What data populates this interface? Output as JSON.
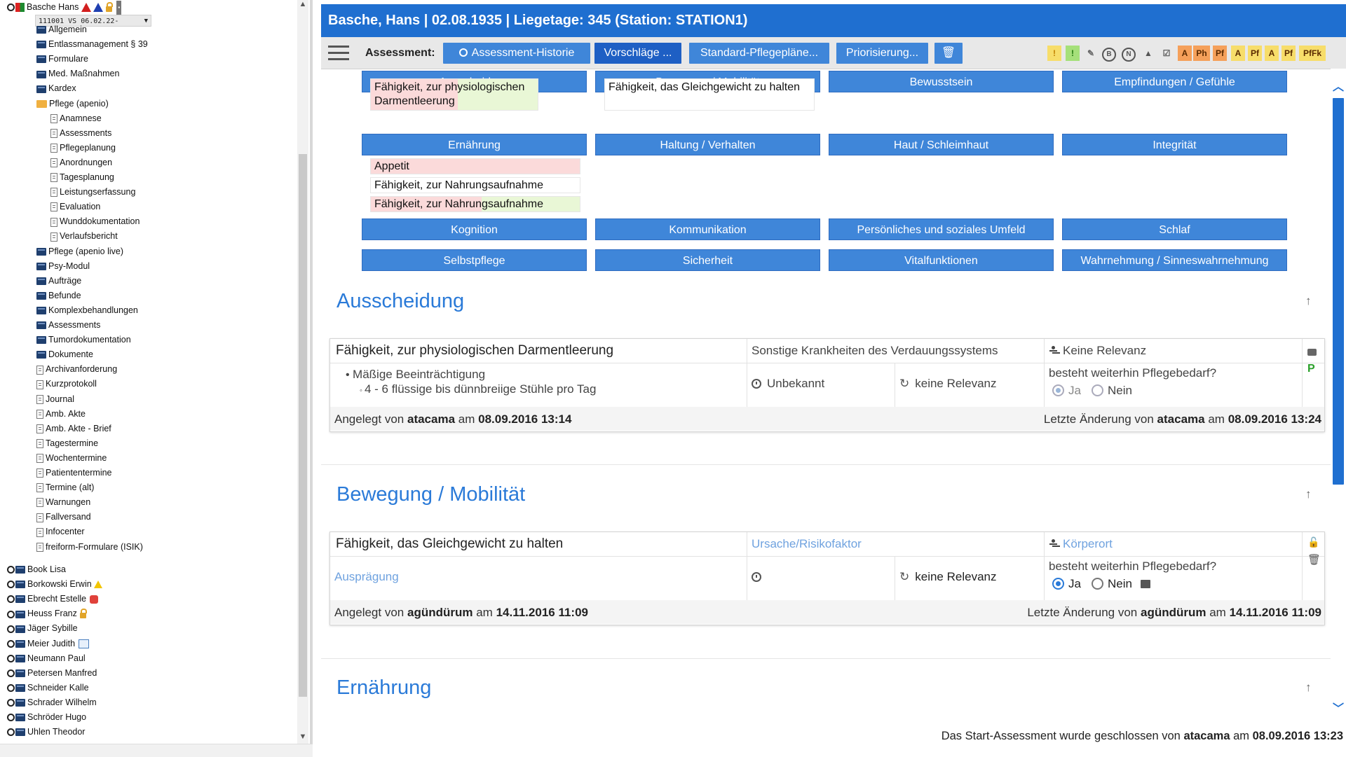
{
  "tree": {
    "root_patient": "Basche Hans",
    "case_select": "111001 VS 06.02.22-",
    "items": [
      {
        "label": "Allgemein",
        "icon": "book"
      },
      {
        "label": "Entlassmanagement § 39",
        "icon": "book"
      },
      {
        "label": "Formulare",
        "icon": "book"
      },
      {
        "label": "Med. Maßnahmen",
        "icon": "book"
      },
      {
        "label": "Kardex",
        "icon": "book"
      },
      {
        "label": "Pflege (apenio)",
        "icon": "folder-open"
      },
      {
        "label": "Anamnese",
        "icon": "page",
        "sub": true
      },
      {
        "label": "Assessments",
        "icon": "page",
        "sub": true
      },
      {
        "label": "Pflegeplanung",
        "icon": "page",
        "sub": true
      },
      {
        "label": "Anordnungen",
        "icon": "page",
        "sub": true
      },
      {
        "label": "Tagesplanung",
        "icon": "page",
        "sub": true
      },
      {
        "label": "Leistungserfassung",
        "icon": "page",
        "sub": true
      },
      {
        "label": "Evaluation",
        "icon": "page",
        "sub": true
      },
      {
        "label": "Wunddokumentation",
        "icon": "page",
        "sub": true
      },
      {
        "label": "Verlaufsbericht",
        "icon": "page",
        "sub": true
      },
      {
        "label": "Pflege (apenio live)",
        "icon": "book"
      },
      {
        "label": "Psy-Modul",
        "icon": "book"
      },
      {
        "label": "Aufträge",
        "icon": "book"
      },
      {
        "label": "Befunde",
        "icon": "book"
      },
      {
        "label": "Komplexbehandlungen",
        "icon": "book"
      },
      {
        "label": "Assessments",
        "icon": "book"
      },
      {
        "label": "Tumordokumentation",
        "icon": "book"
      },
      {
        "label": "Dokumente",
        "icon": "book"
      },
      {
        "label": "Archivanforderung",
        "icon": "page"
      },
      {
        "label": "Kurzprotokoll",
        "icon": "page"
      },
      {
        "label": "Journal",
        "icon": "page"
      },
      {
        "label": "Amb. Akte",
        "icon": "page"
      },
      {
        "label": "Amb. Akte - Brief",
        "icon": "page"
      },
      {
        "label": "Tagestermine",
        "icon": "page"
      },
      {
        "label": "Wochentermine",
        "icon": "page"
      },
      {
        "label": "Patiententermine",
        "icon": "page"
      },
      {
        "label": "Termine (alt)",
        "icon": "page"
      },
      {
        "label": "Warnungen",
        "icon": "page"
      },
      {
        "label": "Fallversand",
        "icon": "page"
      },
      {
        "label": "Infocenter",
        "icon": "page"
      },
      {
        "label": "freiform-Formulare (ISIK)",
        "icon": "page"
      }
    ],
    "patients": [
      {
        "name": "Book Lisa",
        "flag": ""
      },
      {
        "name": "Borkowski Erwin",
        "flag": "warning"
      },
      {
        "name": "Ebrecht Estelle",
        "flag": "hand"
      },
      {
        "name": "Heuss Franz",
        "flag": "lock"
      },
      {
        "name": "Jäger Sybille",
        "flag": ""
      },
      {
        "name": "Meier Judith",
        "flag": "calendar"
      },
      {
        "name": "Neumann Paul",
        "flag": ""
      },
      {
        "name": "Petersen Manfred",
        "flag": ""
      },
      {
        "name": "Schneider Kalle",
        "flag": ""
      },
      {
        "name": "Schrader Wilhelm",
        "flag": ""
      },
      {
        "name": "Schröder Hugo",
        "flag": ""
      },
      {
        "name": "Uhlen Theodor",
        "flag": ""
      }
    ]
  },
  "header": {
    "title": "Basche, Hans | 02.08.1935 | Liegetage: 345 (Station: STATION1)"
  },
  "toolbar": {
    "assessment_label": "Assessment:",
    "history_btn": "Assessment-Historie",
    "suggestions_btn": "Vorschläge ...",
    "standard_btn": "Standard-Pflegepläne...",
    "priority_btn": "Priorisierung...",
    "right_badges": [
      "Ph",
      "Pf",
      "A",
      "Pf",
      "A",
      "Pf",
      "PfFk"
    ],
    "letter_icons": [
      "B",
      "N"
    ]
  },
  "categories": [
    "Ausscheidung",
    "Bewegung / Mobilität",
    "Bewusstsein",
    "Empfindungen / Gefühle",
    "Ernährung",
    "Haltung / Verhalten",
    "Haut / Schleimhaut",
    "Integrität",
    "Kognition",
    "Kommunikation",
    "Persönliches und soziales Umfeld",
    "Schlaf",
    "Selbstpflege",
    "Sicherheit",
    "Vitalfunktionen",
    "Wahrnehmung / Sinneswahrnehmung"
  ],
  "chips": {
    "ausscheidung": "Fähigkeit, zur physiologischen Darmentleerung",
    "bewegung": "Fähigkeit, das Gleichgewicht zu halten",
    "ernaehrung": [
      "Appetit",
      "Fähigkeit, zur Nahrungsaufnahme",
      "Fähigkeit, zur Nahrungsaufnahme"
    ]
  },
  "sections": {
    "s1": {
      "title": "Ausscheidung",
      "card_title": "Fähigkeit, zur physiologischen Darmentleerung",
      "cause": "Sonstige Krankheiten des Verdauungssystems",
      "location": "Keine Relevanz",
      "bullet": "Mäßige Beeinträchtigung",
      "sub_bullet": "4 - 6 flüssige bis dünnbreiige Stühle pro Tag",
      "time": "Unbekannt",
      "relevance": "keine Relevanz",
      "question": "besteht weiterhin Pflegebedarf?",
      "yes": "Ja",
      "no": "Nein",
      "created_prefix": "Angelegt von",
      "created_user": "atacama",
      "am": "am",
      "created_date": "08.09.2016 13:14",
      "changed_prefix": "Letzte Änderung von",
      "changed_user": "atacama",
      "changed_date": "08.09.2016 13:24"
    },
    "s2": {
      "title": "Bewegung / Mobilität",
      "card_title": "Fähigkeit, das Gleichgewicht zu halten",
      "cause": "Ursache/Risikofaktor",
      "location": "Körperort",
      "severity": "Ausprägung",
      "relevance": "keine Relevanz",
      "question": "besteht weiterhin Pflegebedarf?",
      "yes": "Ja",
      "no": "Nein",
      "created_prefix": "Angelegt von",
      "created_user": "agündürum",
      "am": "am",
      "created_date": "14.11.2016 11:09",
      "changed_prefix": "Letzte Änderung von",
      "changed_user": "agündürum",
      "changed_date": "14.11.2016 11:09"
    },
    "s3": {
      "title": "Ernährung"
    }
  },
  "status": {
    "prefix": "Das Start-Assessment wurde geschlossen von",
    "user": "atacama",
    "am": "am",
    "date": "08.09.2016 13:23"
  },
  "colors": {
    "accent": "#1f6fd0",
    "button": "#3f86d9",
    "chip_red": "#fbdada",
    "chip_green": "#e9f7d6",
    "badge_orange": "#f5a05a",
    "badge_yellow": "#f7dd6a"
  }
}
